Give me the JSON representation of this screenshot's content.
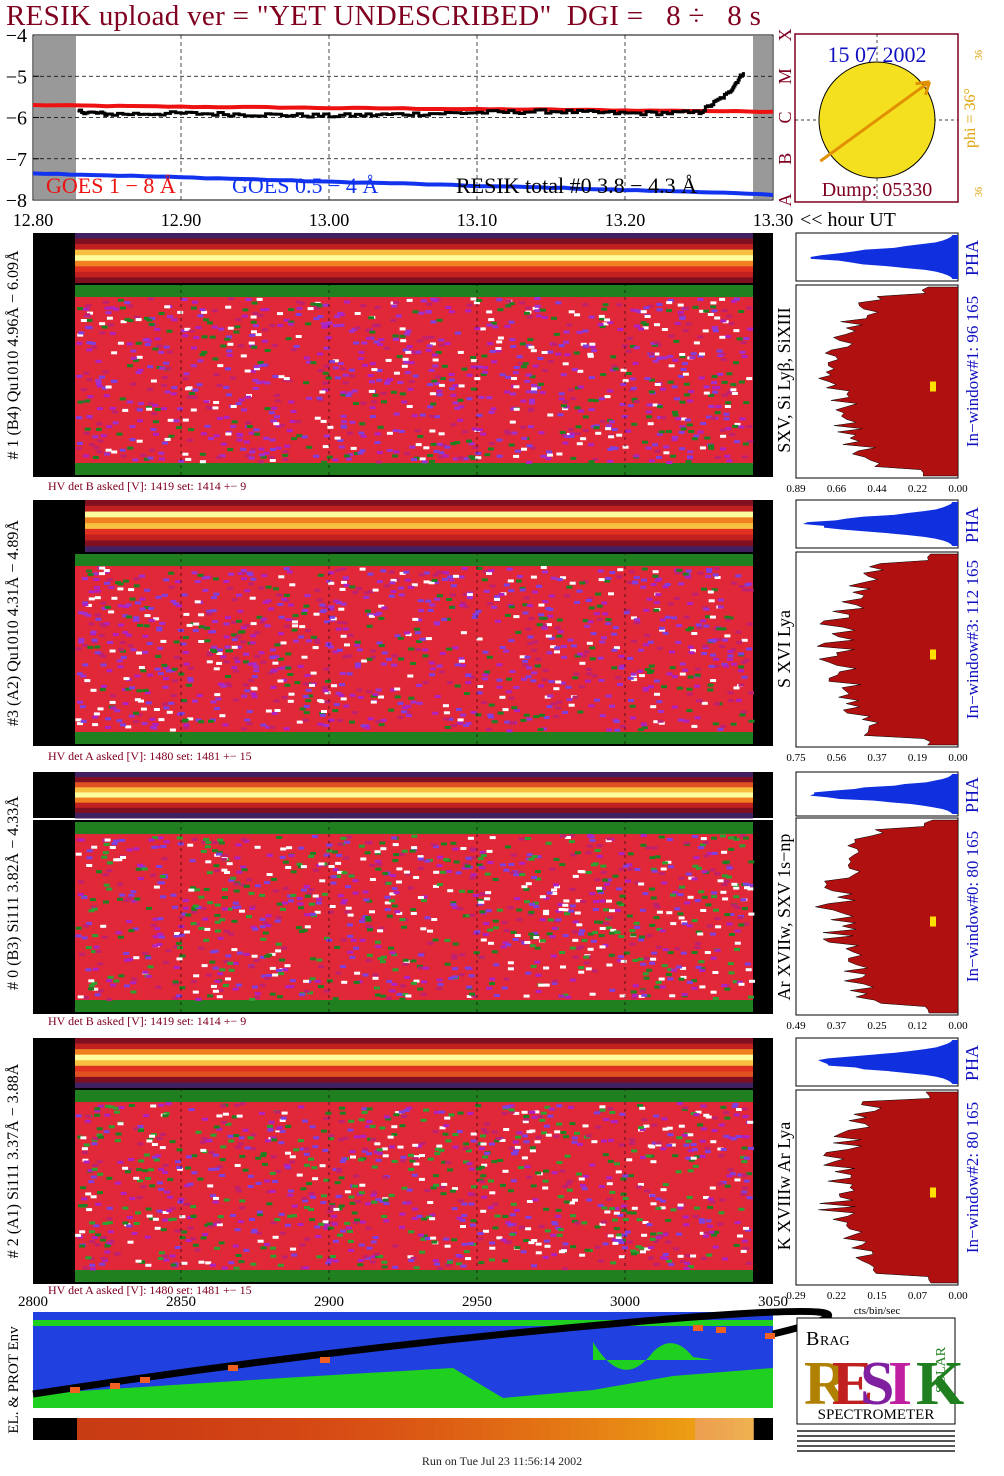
{
  "header": {
    "title": "RESIK upload ver = \"YET UNDESCRIBED\"  DGI =   8 ÷   8 s"
  },
  "goes_panel": {
    "yticks": [
      "−4",
      "−5",
      "−6",
      "−7",
      "−8"
    ],
    "class_letters": [
      "X",
      "M",
      "C",
      "B",
      "A"
    ],
    "legend": {
      "goes_long": "GOES 1 − 8 Å",
      "goes_short": "GOES 0.5 − 4 Å",
      "resik_total": "RESIK total #0  3.8 − 4.3 Å"
    },
    "colors": {
      "goes_long": "#ee1111",
      "goes_short": "#1133ee",
      "resik": "#000000",
      "eclipse": "#999999"
    }
  },
  "time_axis": {
    "ticks": [
      "12.80",
      "12.90",
      "13.00",
      "13.10",
      "13.20",
      "13.30"
    ],
    "unit_label": "<< hour UT"
  },
  "sun_box": {
    "date": "15 07 2002",
    "phi_label": "phi = 36°",
    "phi_small": "36",
    "dump_label": "Dump: 05330",
    "phi_deg": 36,
    "colors": {
      "sun": "#f5e020",
      "border": "#800020",
      "text_blue": "#1010c0",
      "text_orange": "#e0a000"
    }
  },
  "detector_panels": [
    {
      "label": "# 1 (B4) Qu1010 4.96Å − 6.09Å",
      "line_label": "SXV, Si Lyβ, SiXIII",
      "window_label": "In−window#1:  96 165",
      "pha_label": "PHA",
      "hv_text": "HV det B asked [V]:  1419 set:  1414  +−    9",
      "hist_ticks": [
        "0.89",
        "0.66",
        "0.44",
        "0.22",
        "0.00"
      ],
      "max_value": 0.89
    },
    {
      "label": "#3 (A2) Qu1010  4.31Å − 4.89Å",
      "line_label": "S XVI Lya",
      "window_label": "In−window#3:  112 165",
      "pha_label": "PHA",
      "hv_text": "HV det A asked [V]:  1480 set:  1481  +−    15",
      "hist_ticks": [
        "0.75",
        "0.56",
        "0.37",
        "0.19",
        "0.00"
      ],
      "max_value": 0.75
    },
    {
      "label": "# 0 (B3) Si111  3.82Å − 4.33Å",
      "line_label": "Ar XVIIw,  SXV  1s−np",
      "window_label": "In−window#0:   80 165",
      "pha_label": "PHA",
      "hv_text": "HV det B asked [V]:  1419 set:  1414  +−    9",
      "hist_ticks": [
        "0.49",
        "0.37",
        "0.25",
        "0.12",
        "0.00"
      ],
      "max_value": 0.49
    },
    {
      "label": "# 2 (A1) Si111  3.37Å − 3.88Å",
      "line_label": "K XVIIIw  Ar Lya",
      "window_label": "In−window#2:   80 165",
      "pha_label": "PHA",
      "hv_text": "HV det A asked [V]:  1480 set:  1481  +−    15",
      "hist_ticks": [
        "0.29",
        "0.22",
        "0.15",
        "0.07",
        "0.00"
      ],
      "max_value": 0.29
    }
  ],
  "hist_unit": "cts/bin/sec",
  "orbit_panel": {
    "label": "EL. & PROT Env",
    "xticks": [
      "2800",
      "2850",
      "2900",
      "2950",
      "3000",
      "3050"
    ]
  },
  "logo": {
    "letters": [
      "R",
      "E",
      "S",
      "I",
      "K"
    ],
    "small_letters": [
      "B",
      "RAG",
      "SOLAR"
    ],
    "bottom_text": "SPECTROMETER",
    "colors": [
      "#b08000",
      "#c02020",
      "#8020a0",
      "#c020a0",
      "#208020"
    ]
  },
  "footer": {
    "run_text": "Run on Tue Jul 23 11:56:14 2002"
  },
  "chart_data": {
    "type": "line",
    "title": "RESIK upload ver = \"YET UNDESCRIBED\"  DGI =   8 ÷   8 s",
    "x_label": "hour UT",
    "x_range": [
      12.8,
      13.3
    ],
    "y_range": [
      -8,
      -4
    ],
    "series": [
      {
        "name": "GOES 1 − 8 Å",
        "x": [
          12.8,
          12.85,
          12.9,
          12.95,
          13.0,
          13.05,
          13.1,
          13.15,
          13.2,
          13.25,
          13.3
        ],
        "values": [
          -5.7,
          -5.72,
          -5.74,
          -5.75,
          -5.77,
          -5.78,
          -5.8,
          -5.81,
          -5.83,
          -5.84,
          -5.86
        ]
      },
      {
        "name": "GOES 0.5 − 4 Å",
        "x": [
          12.8,
          12.85,
          12.9,
          12.95,
          13.0,
          13.05,
          13.1,
          13.15,
          13.2,
          13.25,
          13.3
        ],
        "values": [
          -7.35,
          -7.4,
          -7.45,
          -7.5,
          -7.56,
          -7.6,
          -7.66,
          -7.7,
          -7.76,
          -7.8,
          -7.88
        ]
      },
      {
        "name": "RESIK total #0  3.8 − 4.3 Å",
        "x": [
          12.83,
          12.85,
          12.9,
          12.95,
          13.0,
          13.05,
          13.1,
          13.15,
          13.2,
          13.25,
          13.27,
          13.28
        ],
        "values": [
          -5.85,
          -5.92,
          -5.9,
          -5.93,
          -5.96,
          -5.92,
          -5.88,
          -5.85,
          -5.9,
          -5.88,
          -5.4,
          -4.9
        ]
      }
    ],
    "grid": true
  }
}
